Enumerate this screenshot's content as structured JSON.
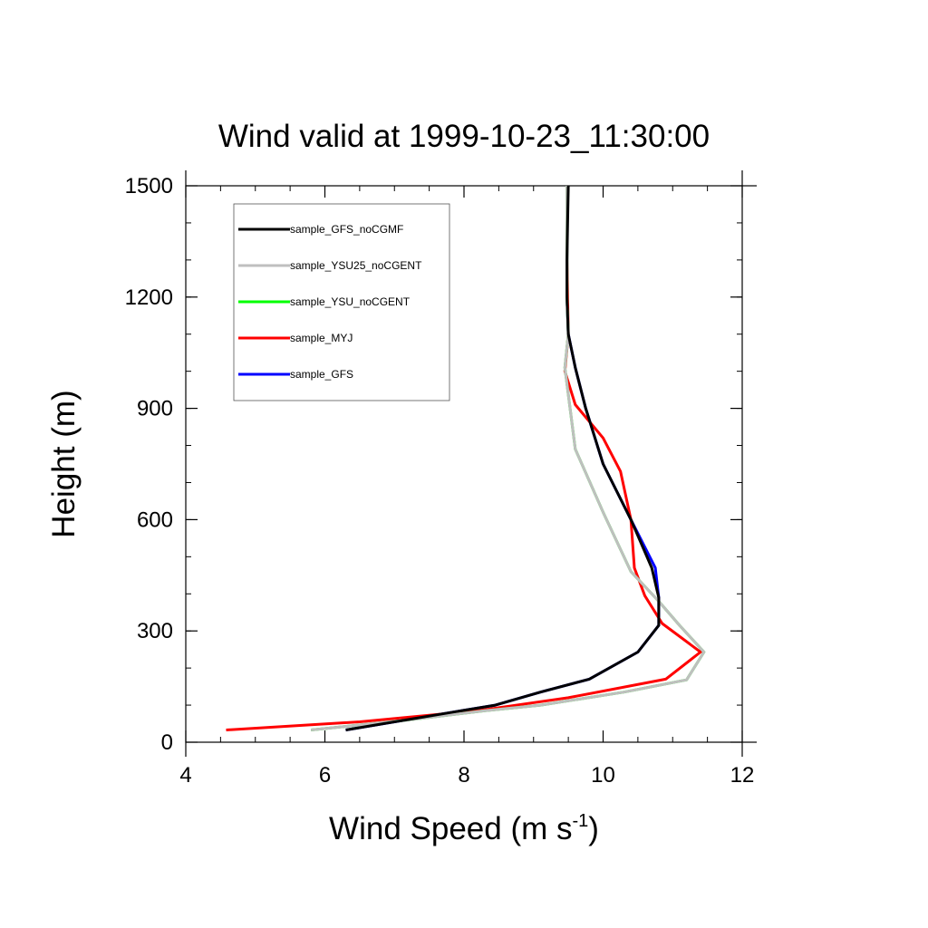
{
  "chart_data": {
    "type": "line",
    "title": "Wind valid at 1999-10-23_11:30:00",
    "xlabel": "Wind Speed (m s",
    "xlabel_sup": "-1",
    "xlabel_close": ")",
    "ylabel": "Height (m)",
    "xlim": [
      4,
      12
    ],
    "ylim": [
      0,
      1500
    ],
    "xticks": [
      4,
      6,
      8,
      10,
      12
    ],
    "yticks": [
      0,
      300,
      600,
      900,
      1200,
      1500
    ],
    "legend_position": "top-left",
    "series": [
      {
        "name": "sample_GFS_noCGMF",
        "color": "#000000",
        "x": [
          6.3,
          7.0,
          7.8,
          8.45,
          9.1,
          9.8,
          10.5,
          10.8,
          10.8,
          10.7,
          10.4,
          10.0,
          9.75,
          9.6,
          9.5,
          9.48,
          9.48,
          9.5
        ],
        "y": [
          33,
          55,
          80,
          100,
          135,
          170,
          243,
          315,
          390,
          470,
          600,
          750,
          900,
          1010,
          1100,
          1200,
          1300,
          1500
        ]
      },
      {
        "name": "sample_YSU25_noCGENT",
        "color": "#bfbfbf",
        "x": [
          5.8,
          7.2,
          8.3,
          9.1,
          10.3,
          11.2,
          11.45,
          11.1,
          10.8,
          10.4,
          10.0,
          9.6,
          9.45,
          9.5,
          9.48,
          9.48,
          9.48
        ],
        "y": [
          33,
          60,
          85,
          100,
          135,
          168,
          243,
          315,
          380,
          460,
          620,
          790,
          1010,
          1100,
          1200,
          1300,
          1500
        ]
      },
      {
        "name": "sample_YSU_noCGENT",
        "color": "#00ff00",
        "x": [
          5.8,
          7.2,
          8.3,
          9.1,
          10.3,
          11.2,
          11.45,
          11.1,
          10.8,
          10.4,
          10.0,
          9.6,
          9.45,
          9.5,
          9.48,
          9.48,
          9.48
        ],
        "y": [
          33,
          60,
          85,
          100,
          135,
          168,
          243,
          315,
          380,
          460,
          620,
          790,
          1010,
          1100,
          1200,
          1300,
          1500
        ]
      },
      {
        "name": "sample_MYJ",
        "color": "#ff0000",
        "x": [
          4.58,
          6.5,
          8.2,
          9.5,
          10.9,
          11.4,
          10.85,
          10.6,
          10.45,
          10.4,
          10.25,
          10.0,
          9.6,
          9.45,
          9.5,
          9.48,
          9.48
        ],
        "y": [
          33,
          55,
          85,
          120,
          170,
          243,
          320,
          395,
          470,
          600,
          730,
          820,
          910,
          1000,
          1100,
          1300,
          1500
        ]
      },
      {
        "name": "sample_GFS",
        "color": "#0000ff",
        "x": [
          6.3,
          7.0,
          7.8,
          8.45,
          9.1,
          9.8,
          10.5,
          10.8,
          10.8,
          10.75,
          10.4,
          10.0,
          9.75,
          9.6,
          9.5,
          9.48,
          9.48,
          9.48
        ],
        "y": [
          33,
          55,
          80,
          100,
          135,
          170,
          243,
          315,
          390,
          470,
          600,
          750,
          900,
          1010,
          1100,
          1200,
          1300,
          1500
        ]
      }
    ]
  }
}
